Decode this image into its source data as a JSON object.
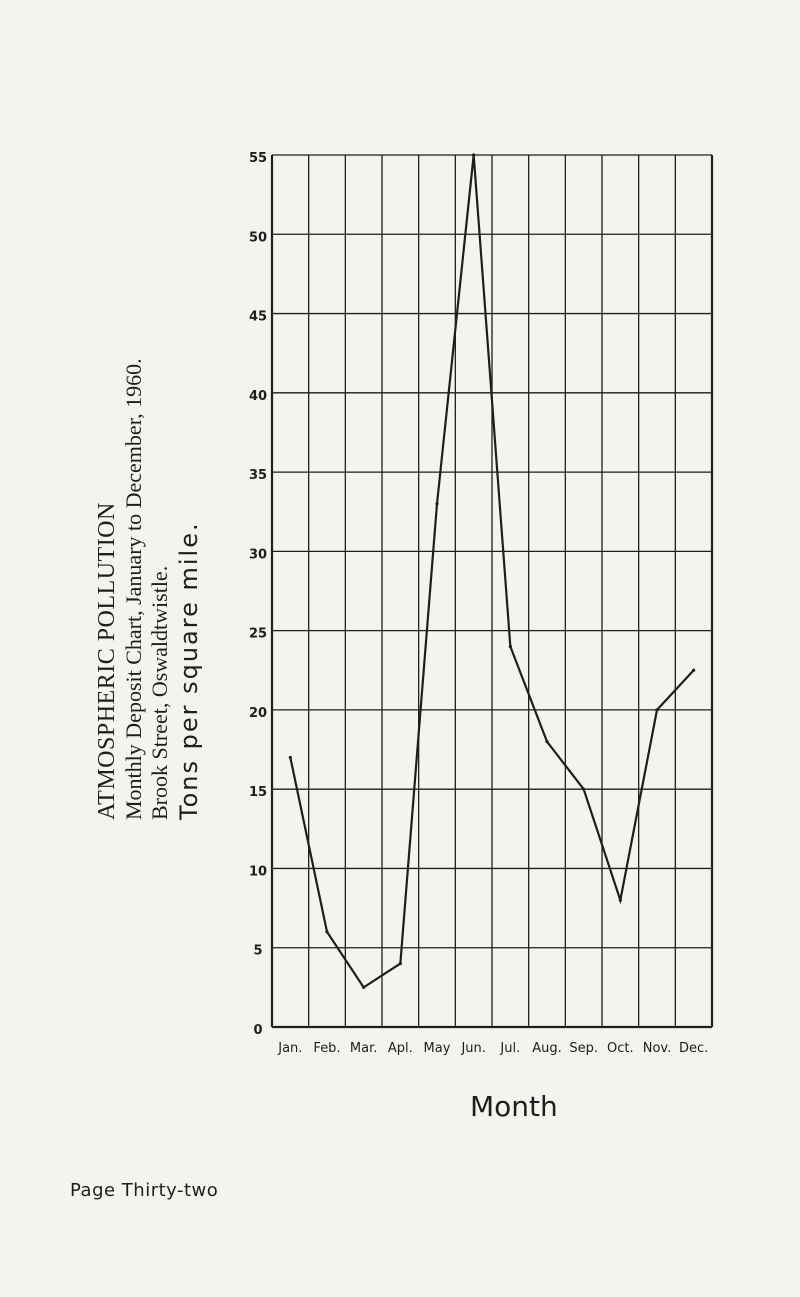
{
  "chart_data": {
    "type": "line",
    "title": "ATMOSPHERIC POLLUTION",
    "subtitle": "Monthly Deposit Chart, January to December, 1960.",
    "location": "Brook Street, Oswaldtwistle.",
    "ylabel": "Tons per square mile.",
    "xlabel": "Month",
    "categories": [
      "Jan.",
      "Feb.",
      "Mar.",
      "Apl.",
      "May",
      "Jun.",
      "Jul.",
      "Aug.",
      "Sep.",
      "Oct.",
      "Nov.",
      "Dec."
    ],
    "yticks": [
      "0",
      "5",
      "10",
      "15",
      "20",
      "25",
      "30",
      "35",
      "40",
      "45",
      "50",
      "55"
    ],
    "values": [
      17,
      6,
      2.5,
      4,
      33,
      55,
      24,
      18,
      15,
      8,
      20,
      22.5
    ],
    "ylim": [
      0,
      55
    ],
    "grid": true,
    "colors": {
      "line": "#1e1e1e",
      "grid": "#1e1e1e"
    }
  },
  "footer": "Page Thirty-two"
}
